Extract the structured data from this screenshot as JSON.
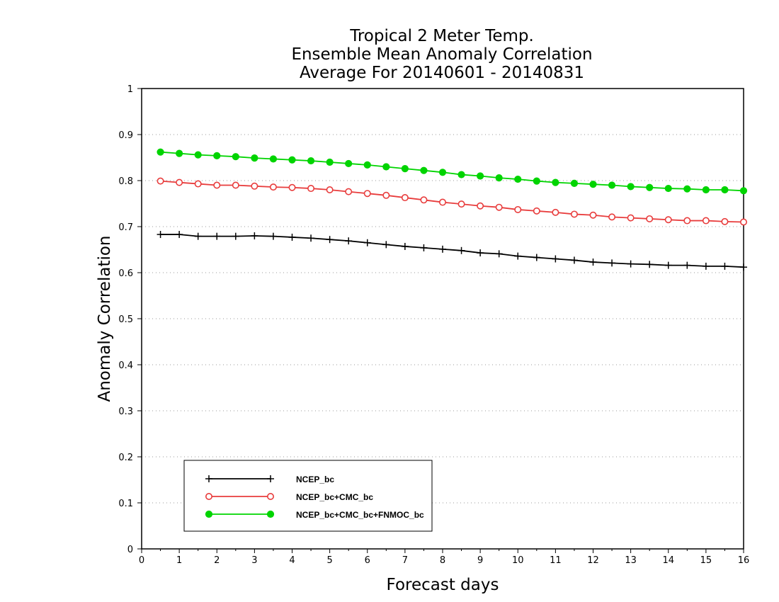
{
  "chart_data": {
    "type": "line",
    "title": [
      "Tropical 2 Meter Temp.",
      "Ensemble Mean Anomaly Correlation",
      "Average For 20140601 - 20140831"
    ],
    "xlabel": "Forecast days",
    "ylabel": "Anomaly Correlation",
    "xlim": [
      0,
      16
    ],
    "ylim": [
      0,
      1
    ],
    "xticks": [
      "0",
      "1",
      "2",
      "3",
      "4",
      "5",
      "6",
      "7",
      "8",
      "9",
      "10",
      "11",
      "12",
      "13",
      "14",
      "15",
      "16"
    ],
    "yticks": [
      "0",
      "0.1",
      "0.2",
      "0.3",
      "0.4",
      "0.5",
      "0.6",
      "0.7",
      "0.8",
      "0.9",
      "1"
    ],
    "grid": "horizontal dotted",
    "legend_position": "bottom-left",
    "x": [
      0.5,
      1,
      1.5,
      2,
      2.5,
      3,
      3.5,
      4,
      4.5,
      5,
      5.5,
      6,
      6.5,
      7,
      7.5,
      8,
      8.5,
      9,
      9.5,
      10,
      10.5,
      11,
      11.5,
      12,
      12.5,
      13,
      13.5,
      14,
      14.5,
      15,
      15.5,
      16
    ],
    "series": [
      {
        "name": "NCEP_bc",
        "color": "#000000",
        "marker": "plus",
        "values": [
          0.683,
          0.683,
          0.679,
          0.679,
          0.679,
          0.68,
          0.679,
          0.677,
          0.675,
          0.672,
          0.669,
          0.665,
          0.661,
          0.657,
          0.654,
          0.651,
          0.648,
          0.643,
          0.641,
          0.636,
          0.633,
          0.63,
          0.627,
          0.623,
          0.621,
          0.619,
          0.618,
          0.616,
          0.616,
          0.614,
          0.614,
          0.612
        ]
      },
      {
        "name": "NCEP_bc+CMC_bc",
        "color": "#e83c3c",
        "marker": "open-circle",
        "values": [
          0.799,
          0.796,
          0.793,
          0.79,
          0.79,
          0.788,
          0.786,
          0.785,
          0.783,
          0.78,
          0.776,
          0.772,
          0.768,
          0.763,
          0.758,
          0.753,
          0.749,
          0.745,
          0.742,
          0.737,
          0.734,
          0.731,
          0.727,
          0.725,
          0.721,
          0.719,
          0.717,
          0.715,
          0.713,
          0.713,
          0.711,
          0.71
        ]
      },
      {
        "name": "NCEP_bc+CMC_bc+FNMOC_bc",
        "color": "#00d400",
        "marker": "filled-circle",
        "values": [
          0.862,
          0.859,
          0.856,
          0.854,
          0.852,
          0.849,
          0.847,
          0.845,
          0.843,
          0.84,
          0.837,
          0.834,
          0.83,
          0.826,
          0.822,
          0.818,
          0.813,
          0.81,
          0.806,
          0.803,
          0.799,
          0.796,
          0.794,
          0.792,
          0.79,
          0.787,
          0.785,
          0.783,
          0.782,
          0.78,
          0.78,
          0.778
        ]
      }
    ]
  }
}
